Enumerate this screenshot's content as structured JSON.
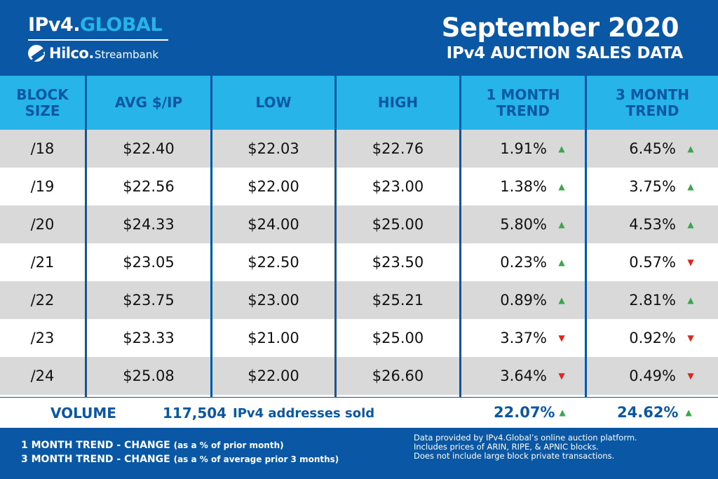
{
  "header": {
    "brand_prefix": "IPv4.",
    "brand_suffix": "GLOBAL",
    "partner_name": "Hilco.",
    "partner_sub": "Streambank",
    "title": "September 2020",
    "subtitle": "IPv4 AUCTION SALES DATA"
  },
  "colors": {
    "primary_blue": "#0a58a5",
    "header_cyan": "#27b4e8",
    "row_gray": "#d9d9d9",
    "trend_up": "#3aa84a",
    "trend_down": "#e1251b"
  },
  "columns": {
    "block_size_1": "BLOCK",
    "block_size_2": "SIZE",
    "avg": "AVG $/IP",
    "low": "LOW",
    "high": "HIGH",
    "month1_1": "1 MONTH",
    "month1_2": "TREND",
    "month3_1": "3 MONTH",
    "month3_2": "TREND"
  },
  "rows": [
    {
      "block": "/18",
      "avg": "$22.40",
      "low": "$22.03",
      "high": "$22.76",
      "t1": "1.91%",
      "t1_dir": "up",
      "t3": "6.45%",
      "t3_dir": "up"
    },
    {
      "block": "/19",
      "avg": "$22.56",
      "low": "$22.00",
      "high": "$23.00",
      "t1": "1.38%",
      "t1_dir": "up",
      "t3": "3.75%",
      "t3_dir": "up"
    },
    {
      "block": "/20",
      "avg": "$24.33",
      "low": "$24.00",
      "high": "$25.00",
      "t1": "5.80%",
      "t1_dir": "up",
      "t3": "4.53%",
      "t3_dir": "up"
    },
    {
      "block": "/21",
      "avg": "$23.05",
      "low": "$22.50",
      "high": "$23.50",
      "t1": "0.23%",
      "t1_dir": "up",
      "t3": "0.57%",
      "t3_dir": "down"
    },
    {
      "block": "/22",
      "avg": "$23.75",
      "low": "$23.00",
      "high": "$25.21",
      "t1": "0.89%",
      "t1_dir": "up",
      "t3": "2.81%",
      "t3_dir": "up"
    },
    {
      "block": "/23",
      "avg": "$23.33",
      "low": "$21.00",
      "high": "$25.00",
      "t1": "3.37%",
      "t1_dir": "down",
      "t3": "0.92%",
      "t3_dir": "down"
    },
    {
      "block": "/24",
      "avg": "$25.08",
      "low": "$22.00",
      "high": "$26.60",
      "t1": "3.64%",
      "t1_dir": "down",
      "t3": "0.49%",
      "t3_dir": "down"
    }
  ],
  "volume": {
    "label": "VOLUME",
    "number": "117,504",
    "description": "IPv4 addresses sold",
    "t1": "22.07%",
    "t1_dir": "up",
    "t3": "24.62%",
    "t3_dir": "up"
  },
  "footer": {
    "legend1_main": "1 MONTH TREND - CHANGE",
    "legend1_note": "(as a % of prior month)",
    "legend2_main": "3 MONTH TREND - CHANGE",
    "legend2_note": "(as a % of average prior 3 months)",
    "note1": "Data provided by IPv4.Global’s online auction platform.",
    "note2": "Includes prices of ARIN, RIPE, & APNIC blocks.",
    "note3": "Does not include large block private transactions."
  },
  "icons": {
    "up": "▲",
    "down": "▼"
  }
}
